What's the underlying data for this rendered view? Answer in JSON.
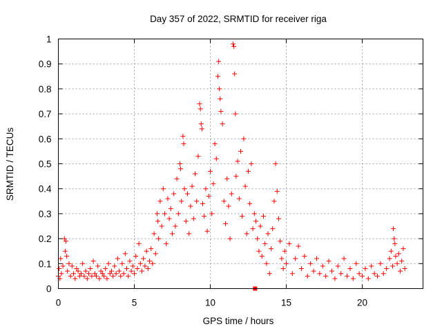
{
  "chart_data": {
    "type": "scatter",
    "title": "Day 357 of 2022, SRMTID for receiver riga",
    "xlabel": "GPS time / hours",
    "ylabel": "SRMTID / TECUs",
    "xlim": [
      0,
      24
    ],
    "ylim": [
      0,
      1
    ],
    "xticks": [
      0,
      5,
      10,
      15,
      20
    ],
    "xtick_labels": [
      "0",
      "5",
      "10",
      "15",
      "20"
    ],
    "yticks": [
      0,
      0.1,
      0.2,
      0.3,
      0.4,
      0.5,
      0.6,
      0.7,
      0.8,
      0.9,
      1
    ],
    "ytick_labels": [
      "0",
      "0.1",
      "0.2",
      "0.3",
      "0.4",
      "0.5",
      "0.6",
      "0.7",
      "0.8",
      "0.9",
      "1"
    ],
    "grid": true,
    "marker": "+",
    "series_color": "#ff0000",
    "series": [
      {
        "name": "SRMTID",
        "points": [
          [
            0.0,
            0.05
          ],
          [
            0.05,
            0.08
          ],
          [
            0.1,
            0.04
          ],
          [
            0.15,
            0.12
          ],
          [
            0.2,
            0.06
          ],
          [
            0.3,
            0.09
          ],
          [
            0.4,
            0.2
          ],
          [
            0.45,
            0.15
          ],
          [
            0.5,
            0.19
          ],
          [
            0.55,
            0.13
          ],
          [
            0.6,
            0.07
          ],
          [
            0.7,
            0.1
          ],
          [
            0.8,
            0.05
          ],
          [
            0.9,
            0.09
          ],
          [
            1.0,
            0.06
          ],
          [
            1.1,
            0.04
          ],
          [
            1.2,
            0.08
          ],
          [
            1.3,
            0.07
          ],
          [
            1.4,
            0.05
          ],
          [
            1.5,
            0.06
          ],
          [
            1.6,
            0.1
          ],
          [
            1.7,
            0.05
          ],
          [
            1.8,
            0.07
          ],
          [
            1.9,
            0.04
          ],
          [
            2.0,
            0.06
          ],
          [
            2.1,
            0.08
          ],
          [
            2.2,
            0.05
          ],
          [
            2.3,
            0.11
          ],
          [
            2.4,
            0.06
          ],
          [
            2.5,
            0.05
          ],
          [
            2.6,
            0.09
          ],
          [
            2.7,
            0.04
          ],
          [
            2.8,
            0.07
          ],
          [
            2.9,
            0.06
          ],
          [
            3.0,
            0.05
          ],
          [
            3.1,
            0.08
          ],
          [
            3.2,
            0.04
          ],
          [
            3.3,
            0.1
          ],
          [
            3.4,
            0.06
          ],
          [
            3.5,
            0.07
          ],
          [
            3.6,
            0.05
          ],
          [
            3.7,
            0.09
          ],
          [
            3.8,
            0.06
          ],
          [
            3.9,
            0.12
          ],
          [
            4.0,
            0.07
          ],
          [
            4.1,
            0.05
          ],
          [
            4.2,
            0.1
          ],
          [
            4.3,
            0.06
          ],
          [
            4.4,
            0.14
          ],
          [
            4.5,
            0.08
          ],
          [
            4.6,
            0.05
          ],
          [
            4.7,
            0.11
          ],
          [
            4.8,
            0.07
          ],
          [
            4.9,
            0.09
          ],
          [
            5.0,
            0.06
          ],
          [
            5.1,
            0.13
          ],
          [
            5.2,
            0.08
          ],
          [
            5.3,
            0.18
          ],
          [
            5.4,
            0.1
          ],
          [
            5.5,
            0.07
          ],
          [
            5.6,
            0.12
          ],
          [
            5.7,
            0.09
          ],
          [
            5.8,
            0.15
          ],
          [
            5.9,
            0.08
          ],
          [
            6.0,
            0.11
          ],
          [
            6.1,
            0.16
          ],
          [
            6.2,
            0.1
          ],
          [
            6.3,
            0.22
          ],
          [
            6.4,
            0.14
          ],
          [
            6.5,
            0.3
          ],
          [
            6.55,
            0.27
          ],
          [
            6.6,
            0.2
          ],
          [
            6.7,
            0.35
          ],
          [
            6.8,
            0.25
          ],
          [
            6.9,
            0.4
          ],
          [
            7.0,
            0.3
          ],
          [
            7.1,
            0.18
          ],
          [
            7.2,
            0.36
          ],
          [
            7.3,
            0.28
          ],
          [
            7.4,
            0.32
          ],
          [
            7.5,
            0.22
          ],
          [
            7.6,
            0.38
          ],
          [
            7.7,
            0.25
          ],
          [
            7.8,
            0.44
          ],
          [
            7.9,
            0.3
          ],
          [
            8.0,
            0.5
          ],
          [
            8.05,
            0.48
          ],
          [
            8.1,
            0.35
          ],
          [
            8.2,
            0.61
          ],
          [
            8.25,
            0.58
          ],
          [
            8.3,
            0.4
          ],
          [
            8.4,
            0.27
          ],
          [
            8.5,
            0.38
          ],
          [
            8.6,
            0.22
          ],
          [
            8.7,
            0.33
          ],
          [
            8.8,
            0.41
          ],
          [
            8.9,
            0.28
          ],
          [
            9.0,
            0.46
          ],
          [
            9.1,
            0.35
          ],
          [
            9.2,
            0.53
          ],
          [
            9.3,
            0.74
          ],
          [
            9.35,
            0.72
          ],
          [
            9.4,
            0.66
          ],
          [
            9.45,
            0.64
          ],
          [
            9.5,
            0.34
          ],
          [
            9.6,
            0.29
          ],
          [
            9.7,
            0.4
          ],
          [
            9.8,
            0.23
          ],
          [
            9.9,
            0.37
          ],
          [
            10.0,
            0.47
          ],
          [
            10.1,
            0.3
          ],
          [
            10.2,
            0.42
          ],
          [
            10.3,
            0.58
          ],
          [
            10.4,
            0.52
          ],
          [
            10.5,
            0.85
          ],
          [
            10.55,
            0.91
          ],
          [
            10.6,
            0.8
          ],
          [
            10.65,
            0.76
          ],
          [
            10.7,
            0.71
          ],
          [
            10.8,
            0.66
          ],
          [
            10.9,
            0.35
          ],
          [
            11.0,
            0.26
          ],
          [
            11.1,
            0.44
          ],
          [
            11.2,
            0.33
          ],
          [
            11.3,
            0.2
          ],
          [
            11.4,
            0.38
          ],
          [
            11.5,
            0.98
          ],
          [
            11.55,
            0.97
          ],
          [
            11.6,
            0.86
          ],
          [
            11.65,
            0.7
          ],
          [
            11.7,
            0.45
          ],
          [
            11.8,
            0.51
          ],
          [
            11.9,
            0.36
          ],
          [
            12.0,
            0.55
          ],
          [
            12.1,
            0.29
          ],
          [
            12.2,
            0.6
          ],
          [
            12.3,
            0.41
          ],
          [
            12.4,
            0.22
          ],
          [
            12.5,
            0.47
          ],
          [
            12.6,
            0.34
          ],
          [
            12.7,
            0.5
          ],
          [
            12.8,
            0.24
          ],
          [
            12.9,
            0.3
          ],
          [
            13.0,
            0.27
          ],
          [
            13.1,
            0.2
          ],
          [
            13.2,
            0.15
          ],
          [
            13.3,
            0.25
          ],
          [
            13.4,
            0.13
          ],
          [
            13.5,
            0.29
          ],
          [
            13.6,
            0.18
          ],
          [
            13.7,
            0.1
          ],
          [
            13.8,
            0.22
          ],
          [
            13.9,
            0.06
          ],
          [
            14.0,
            0.16
          ],
          [
            14.1,
            0.24
          ],
          [
            14.2,
            0.35
          ],
          [
            14.3,
            0.5
          ],
          [
            14.4,
            0.39
          ],
          [
            14.5,
            0.28
          ],
          [
            14.6,
            0.19
          ],
          [
            14.7,
            0.12
          ],
          [
            14.8,
            0.08
          ],
          [
            14.9,
            0.15
          ],
          [
            15.0,
            0.1
          ],
          [
            15.2,
            0.18
          ],
          [
            15.4,
            0.06
          ],
          [
            15.6,
            0.12
          ],
          [
            15.8,
            0.17
          ],
          [
            16.0,
            0.08
          ],
          [
            16.2,
            0.13
          ],
          [
            16.4,
            0.05
          ],
          [
            16.6,
            0.1
          ],
          [
            16.8,
            0.07
          ],
          [
            17.0,
            0.12
          ],
          [
            17.2,
            0.06
          ],
          [
            17.4,
            0.09
          ],
          [
            17.6,
            0.05
          ],
          [
            17.8,
            0.11
          ],
          [
            18.0,
            0.07
          ],
          [
            18.2,
            0.04
          ],
          [
            18.4,
            0.09
          ],
          [
            18.6,
            0.06
          ],
          [
            18.8,
            0.12
          ],
          [
            19.0,
            0.05
          ],
          [
            19.2,
            0.08
          ],
          [
            19.4,
            0.04
          ],
          [
            19.6,
            0.1
          ],
          [
            19.8,
            0.06
          ],
          [
            20.0,
            0.05
          ],
          [
            20.2,
            0.08
          ],
          [
            20.4,
            0.04
          ],
          [
            20.6,
            0.09
          ],
          [
            20.8,
            0.06
          ],
          [
            21.0,
            0.05
          ],
          [
            21.2,
            0.1
          ],
          [
            21.4,
            0.06
          ],
          [
            21.6,
            0.08
          ],
          [
            21.8,
            0.12
          ],
          [
            21.9,
            0.15
          ],
          [
            22.0,
            0.09
          ],
          [
            22.05,
            0.24
          ],
          [
            22.1,
            0.2
          ],
          [
            22.15,
            0.18
          ],
          [
            22.2,
            0.13
          ],
          [
            22.3,
            0.1
          ],
          [
            22.4,
            0.14
          ],
          [
            22.5,
            0.07
          ],
          [
            22.6,
            0.11
          ],
          [
            22.7,
            0.16
          ],
          [
            22.8,
            0.08
          ]
        ]
      }
    ],
    "markers": [
      {
        "name": "square",
        "x": 12.95,
        "y": 0.0
      }
    ]
  }
}
